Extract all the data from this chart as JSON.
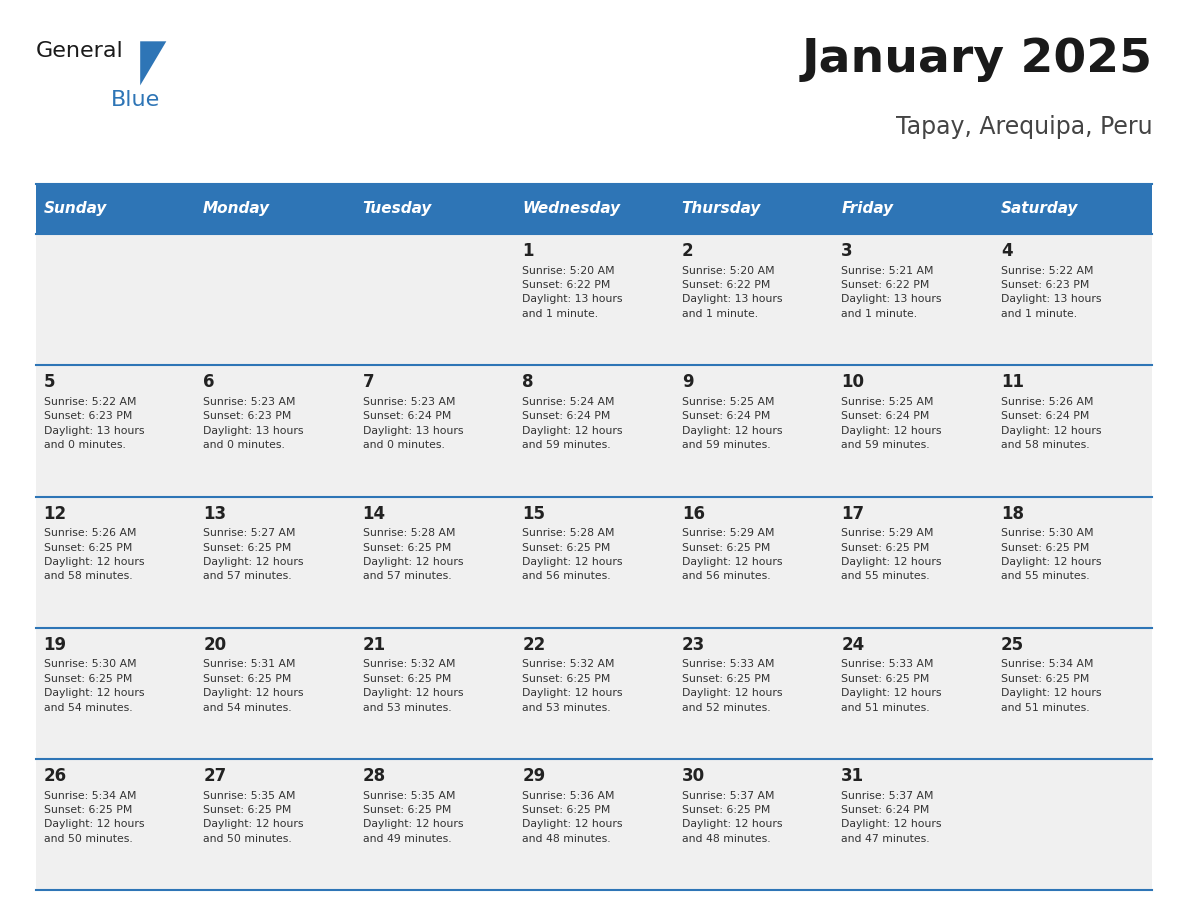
{
  "title": "January 2025",
  "subtitle": "Tapay, Arequipa, Peru",
  "header_bg": "#2E75B6",
  "header_text_color": "#FFFFFF",
  "cell_bg_light": "#F0F0F0",
  "day_number_color": "#222222",
  "cell_text_color": "#333333",
  "border_color": "#2E75B6",
  "days_of_week": [
    "Sunday",
    "Monday",
    "Tuesday",
    "Wednesday",
    "Thursday",
    "Friday",
    "Saturday"
  ],
  "weeks": [
    [
      {
        "day": null,
        "info": null
      },
      {
        "day": null,
        "info": null
      },
      {
        "day": null,
        "info": null
      },
      {
        "day": 1,
        "info": "Sunrise: 5:20 AM\nSunset: 6:22 PM\nDaylight: 13 hours\nand 1 minute."
      },
      {
        "day": 2,
        "info": "Sunrise: 5:20 AM\nSunset: 6:22 PM\nDaylight: 13 hours\nand 1 minute."
      },
      {
        "day": 3,
        "info": "Sunrise: 5:21 AM\nSunset: 6:22 PM\nDaylight: 13 hours\nand 1 minute."
      },
      {
        "day": 4,
        "info": "Sunrise: 5:22 AM\nSunset: 6:23 PM\nDaylight: 13 hours\nand 1 minute."
      }
    ],
    [
      {
        "day": 5,
        "info": "Sunrise: 5:22 AM\nSunset: 6:23 PM\nDaylight: 13 hours\nand 0 minutes."
      },
      {
        "day": 6,
        "info": "Sunrise: 5:23 AM\nSunset: 6:23 PM\nDaylight: 13 hours\nand 0 minutes."
      },
      {
        "day": 7,
        "info": "Sunrise: 5:23 AM\nSunset: 6:24 PM\nDaylight: 13 hours\nand 0 minutes."
      },
      {
        "day": 8,
        "info": "Sunrise: 5:24 AM\nSunset: 6:24 PM\nDaylight: 12 hours\nand 59 minutes."
      },
      {
        "day": 9,
        "info": "Sunrise: 5:25 AM\nSunset: 6:24 PM\nDaylight: 12 hours\nand 59 minutes."
      },
      {
        "day": 10,
        "info": "Sunrise: 5:25 AM\nSunset: 6:24 PM\nDaylight: 12 hours\nand 59 minutes."
      },
      {
        "day": 11,
        "info": "Sunrise: 5:26 AM\nSunset: 6:24 PM\nDaylight: 12 hours\nand 58 minutes."
      }
    ],
    [
      {
        "day": 12,
        "info": "Sunrise: 5:26 AM\nSunset: 6:25 PM\nDaylight: 12 hours\nand 58 minutes."
      },
      {
        "day": 13,
        "info": "Sunrise: 5:27 AM\nSunset: 6:25 PM\nDaylight: 12 hours\nand 57 minutes."
      },
      {
        "day": 14,
        "info": "Sunrise: 5:28 AM\nSunset: 6:25 PM\nDaylight: 12 hours\nand 57 minutes."
      },
      {
        "day": 15,
        "info": "Sunrise: 5:28 AM\nSunset: 6:25 PM\nDaylight: 12 hours\nand 56 minutes."
      },
      {
        "day": 16,
        "info": "Sunrise: 5:29 AM\nSunset: 6:25 PM\nDaylight: 12 hours\nand 56 minutes."
      },
      {
        "day": 17,
        "info": "Sunrise: 5:29 AM\nSunset: 6:25 PM\nDaylight: 12 hours\nand 55 minutes."
      },
      {
        "day": 18,
        "info": "Sunrise: 5:30 AM\nSunset: 6:25 PM\nDaylight: 12 hours\nand 55 minutes."
      }
    ],
    [
      {
        "day": 19,
        "info": "Sunrise: 5:30 AM\nSunset: 6:25 PM\nDaylight: 12 hours\nand 54 minutes."
      },
      {
        "day": 20,
        "info": "Sunrise: 5:31 AM\nSunset: 6:25 PM\nDaylight: 12 hours\nand 54 minutes."
      },
      {
        "day": 21,
        "info": "Sunrise: 5:32 AM\nSunset: 6:25 PM\nDaylight: 12 hours\nand 53 minutes."
      },
      {
        "day": 22,
        "info": "Sunrise: 5:32 AM\nSunset: 6:25 PM\nDaylight: 12 hours\nand 53 minutes."
      },
      {
        "day": 23,
        "info": "Sunrise: 5:33 AM\nSunset: 6:25 PM\nDaylight: 12 hours\nand 52 minutes."
      },
      {
        "day": 24,
        "info": "Sunrise: 5:33 AM\nSunset: 6:25 PM\nDaylight: 12 hours\nand 51 minutes."
      },
      {
        "day": 25,
        "info": "Sunrise: 5:34 AM\nSunset: 6:25 PM\nDaylight: 12 hours\nand 51 minutes."
      }
    ],
    [
      {
        "day": 26,
        "info": "Sunrise: 5:34 AM\nSunset: 6:25 PM\nDaylight: 12 hours\nand 50 minutes."
      },
      {
        "day": 27,
        "info": "Sunrise: 5:35 AM\nSunset: 6:25 PM\nDaylight: 12 hours\nand 50 minutes."
      },
      {
        "day": 28,
        "info": "Sunrise: 5:35 AM\nSunset: 6:25 PM\nDaylight: 12 hours\nand 49 minutes."
      },
      {
        "day": 29,
        "info": "Sunrise: 5:36 AM\nSunset: 6:25 PM\nDaylight: 12 hours\nand 48 minutes."
      },
      {
        "day": 30,
        "info": "Sunrise: 5:37 AM\nSunset: 6:25 PM\nDaylight: 12 hours\nand 48 minutes."
      },
      {
        "day": 31,
        "info": "Sunrise: 5:37 AM\nSunset: 6:24 PM\nDaylight: 12 hours\nand 47 minutes."
      },
      {
        "day": null,
        "info": null
      }
    ]
  ]
}
